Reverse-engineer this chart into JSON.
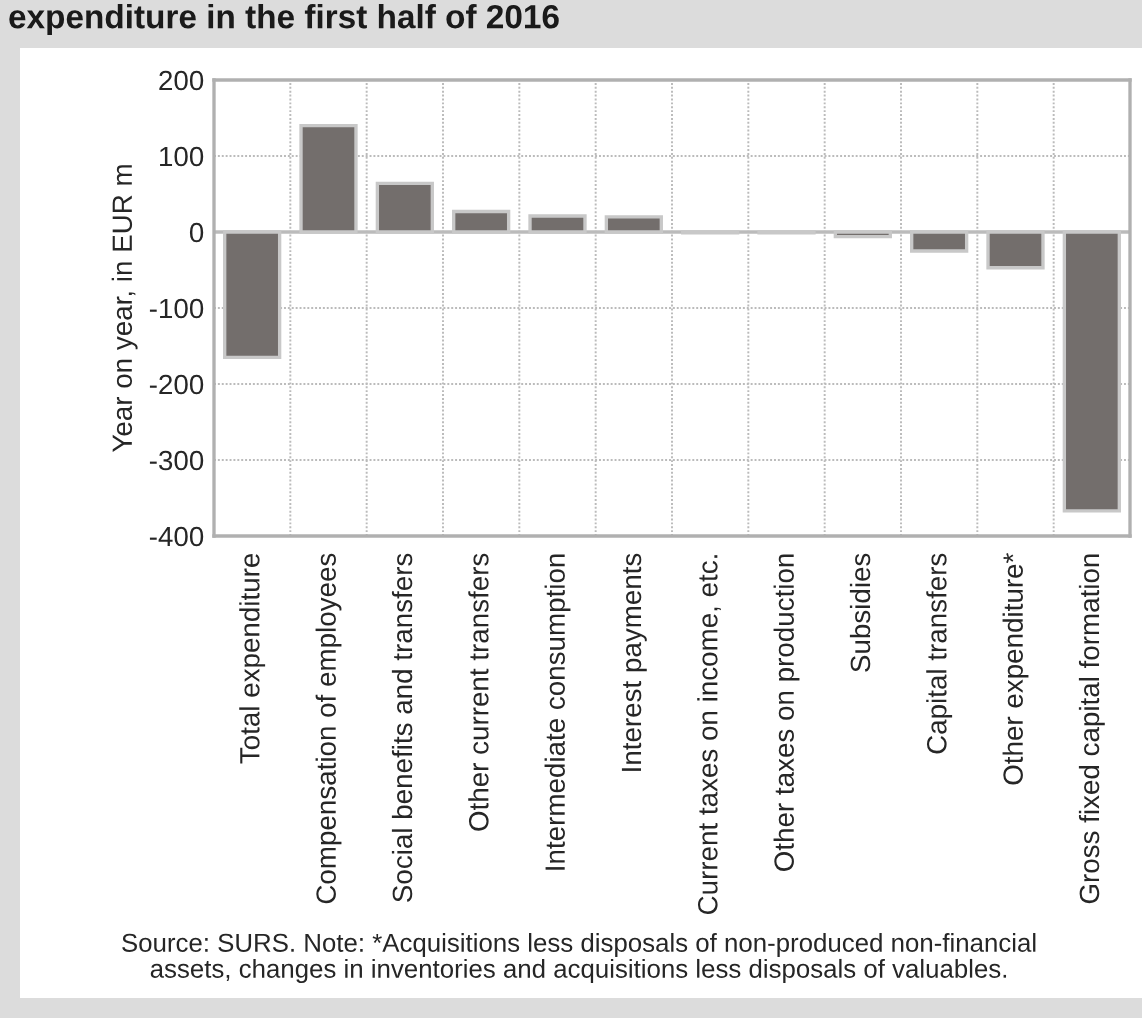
{
  "chart_data": {
    "type": "bar",
    "title": "expenditure in the first half of 2016",
    "ylabel": "Year on year, in EUR m",
    "categories": [
      "Total expenditure",
      "Compensation of employees",
      "Social benefits and transfers",
      "Other current transfers",
      "Intermediate consumption",
      "Interest payments",
      "Current taxes on income, etc.",
      "Other taxes on production",
      "Subsidies",
      "Capital transfers",
      "Other expenditure*",
      "Gross fixed capital formation"
    ],
    "values": [
      -165,
      140,
      64,
      27,
      21,
      20,
      -1,
      -1,
      -6,
      -25,
      -47,
      -367
    ],
    "color": "#736e6c",
    "ylim": [
      -400,
      200
    ],
    "yticks": [
      -400,
      -300,
      -200,
      -100,
      0,
      100,
      200
    ],
    "grid": true,
    "annotations": [
      "Source: SURS. Note: *Acquisitions less disposals of non-produced non-financial\nassets, changes in inventories and acquisitions less disposals of valuables."
    ]
  }
}
